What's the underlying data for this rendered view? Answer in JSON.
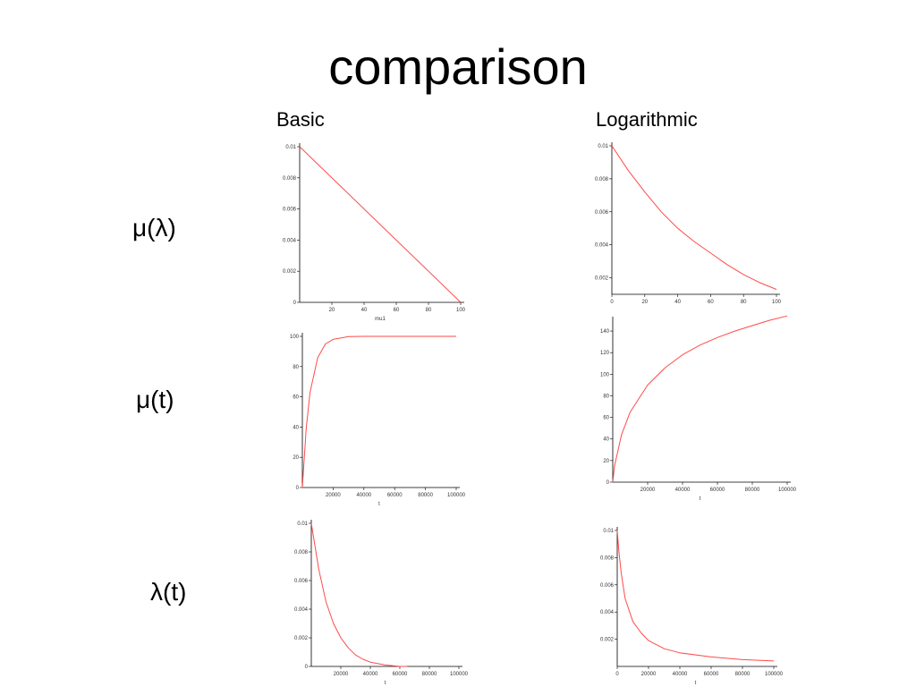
{
  "slide": {
    "title": "comparison",
    "column_headers": [
      "Basic",
      "Logarithmic"
    ],
    "row_labels": [
      "μ(λ)",
      "μ(t)",
      "λ(t)"
    ]
  },
  "colors": {
    "curve": "#ff4a4a",
    "axis": "#000000",
    "background": "#ffffff"
  },
  "chart_data": [
    {
      "type": "line",
      "id": "basic-mu-lambda",
      "xlabel": "mu1",
      "ylabel": "",
      "xlim": [
        0,
        100
      ],
      "ylim": [
        0,
        0.01
      ],
      "xticks": [
        20,
        40,
        60,
        80,
        100
      ],
      "yticks": [
        0,
        0.002,
        0.004,
        0.006,
        0.008,
        0.01
      ],
      "series": [
        {
          "x": [
            0,
            100
          ],
          "y": [
            0.01,
            0
          ]
        }
      ]
    },
    {
      "type": "line",
      "id": "log-mu-lambda",
      "xlabel": "",
      "ylabel": "",
      "xlim": [
        0,
        100
      ],
      "ylim": [
        0.001,
        0.01
      ],
      "xticks": [
        0,
        20,
        40,
        60,
        80,
        100
      ],
      "yticks": [
        0.002,
        0.004,
        0.006,
        0.008,
        0.01
      ],
      "series": [
        {
          "x": [
            0,
            10,
            20,
            30,
            40,
            50,
            60,
            70,
            80,
            90,
            100
          ],
          "y": [
            0.01,
            0.0085,
            0.0072,
            0.006,
            0.005,
            0.0042,
            0.0035,
            0.0028,
            0.0022,
            0.0017,
            0.0013
          ]
        }
      ]
    },
    {
      "type": "line",
      "id": "basic-mu-t",
      "xlabel": "t",
      "ylabel": "",
      "xlim": [
        0,
        100000
      ],
      "ylim": [
        0,
        100
      ],
      "xticks": [
        20000,
        40000,
        60000,
        80000,
        100000
      ],
      "yticks": [
        0,
        20,
        40,
        60,
        80,
        100
      ],
      "series": [
        {
          "x": [
            0,
            2500,
            5000,
            10000,
            15000,
            20000,
            30000,
            40000,
            50000,
            60000,
            80000,
            100000
          ],
          "y": [
            0,
            39,
            63,
            86,
            95,
            98,
            99.8,
            100,
            100,
            100,
            100,
            100
          ]
        }
      ]
    },
    {
      "type": "line",
      "id": "log-mu-t",
      "xlabel": "t",
      "ylabel": "",
      "xlim": [
        0,
        100000
      ],
      "ylim": [
        0,
        150
      ],
      "xticks": [
        20000,
        40000,
        60000,
        80000,
        100000
      ],
      "yticks": [
        0,
        20,
        40,
        60,
        80,
        100,
        120,
        140
      ],
      "series": [
        {
          "x": [
            0,
            1000,
            5000,
            10000,
            20000,
            30000,
            40000,
            50000,
            60000,
            70000,
            80000,
            90000,
            100000
          ],
          "y": [
            0,
            15,
            44,
            65,
            90,
            106,
            118,
            127,
            134,
            140,
            145,
            150,
            154
          ]
        }
      ]
    },
    {
      "type": "line",
      "id": "basic-lambda-t",
      "xlabel": "t",
      "ylabel": "",
      "xlim": [
        0,
        100000
      ],
      "ylim": [
        0,
        0.01
      ],
      "xticks": [
        20000,
        40000,
        60000,
        80000,
        100000
      ],
      "yticks": [
        0,
        0.002,
        0.004,
        0.006,
        0.008,
        0.01
      ],
      "series": [
        {
          "x": [
            0,
            5000,
            10000,
            15000,
            20000,
            25000,
            30000,
            35000,
            40000,
            50000,
            60000,
            65000
          ],
          "y": [
            0.01,
            0.0068,
            0.0045,
            0.003,
            0.002,
            0.0013,
            0.0008,
            0.0005,
            0.0003,
            0.0001,
            0,
            0
          ]
        }
      ]
    },
    {
      "type": "line",
      "id": "log-lambda-t",
      "xlabel": "t",
      "ylabel": "",
      "xlim": [
        0,
        100000
      ],
      "ylim": [
        0,
        0.01
      ],
      "xticks": [
        0,
        20000,
        40000,
        60000,
        80000,
        100000
      ],
      "yticks": [
        0.002,
        0.004,
        0.006,
        0.008,
        0.01
      ],
      "series": [
        {
          "x": [
            0,
            1000,
            2500,
            5000,
            10000,
            15000,
            20000,
            30000,
            40000,
            60000,
            80000,
            100000
          ],
          "y": [
            0.01,
            0.0085,
            0.0069,
            0.005,
            0.0033,
            0.0025,
            0.0019,
            0.0013,
            0.001,
            0.0007,
            0.0005,
            0.0004
          ]
        }
      ]
    }
  ]
}
